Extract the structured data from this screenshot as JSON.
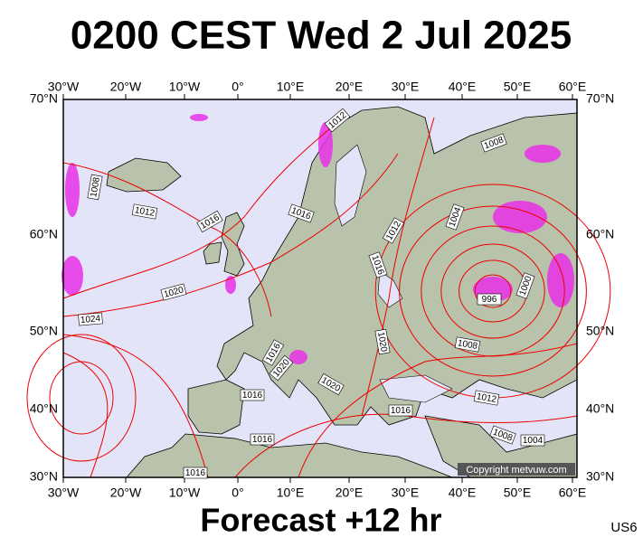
{
  "header": {
    "title": "0200 CEST Wed 2 Jul 2025"
  },
  "footer": {
    "forecast": "Forecast +12 hr",
    "code": "US6"
  },
  "copyright": "Copyright metvuw.com",
  "longitude_labels": [
    "30°W",
    "20°W",
    "10°W",
    "0°",
    "10°E",
    "20°E",
    "30°E",
    "40°E",
    "50°E",
    "60°E"
  ],
  "latitude_labels": [
    "70°N",
    "60°N",
    "50°N",
    "40°N",
    "30°N"
  ],
  "isobar_labels": [
    1012,
    1008,
    1008,
    1012,
    1016,
    1016,
    1004,
    1012,
    1016,
    1020,
    1024,
    996,
    1000,
    1020,
    1008,
    1016,
    1020,
    1020,
    1016,
    1016,
    1012,
    1008,
    1004,
    1016,
    1016
  ]
}
